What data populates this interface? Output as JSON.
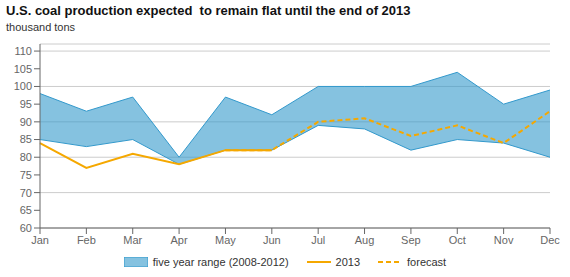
{
  "chart_data": {
    "type": "line",
    "title": "U.S. coal production expected  to remain flat until the end of 2013",
    "subtitle": "thousand tons",
    "categories": [
      "Jan",
      "Feb",
      "Mar",
      "Apr",
      "May",
      "Jun",
      "Jul",
      "Aug",
      "Sep",
      "Oct",
      "Nov",
      "Dec"
    ],
    "series": [
      {
        "name": "five year range (2008-2012)",
        "type": "range",
        "color": "#3399cc",
        "lower": [
          85,
          83,
          85,
          78,
          82,
          82,
          89,
          88,
          82,
          85,
          84,
          80
        ],
        "upper": [
          98,
          93,
          97,
          80,
          97,
          92,
          100,
          100,
          100,
          104,
          95,
          99
        ]
      },
      {
        "name": "2013",
        "type": "line",
        "color": "#f5a800",
        "line_style": "solid",
        "values": [
          84,
          77,
          81,
          78,
          82,
          82,
          null,
          null,
          null,
          null,
          null,
          null
        ]
      },
      {
        "name": "forecast",
        "type": "line",
        "color": "#f5a800",
        "line_style": "dashed",
        "values": [
          null,
          null,
          null,
          null,
          82,
          82,
          90,
          91,
          86,
          89,
          84,
          93
        ]
      }
    ],
    "ylim": [
      60,
      112
    ],
    "yticks": [
      60,
      65,
      70,
      75,
      80,
      85,
      90,
      95,
      100,
      105,
      110
    ],
    "grid": true,
    "legend": "bottom"
  }
}
